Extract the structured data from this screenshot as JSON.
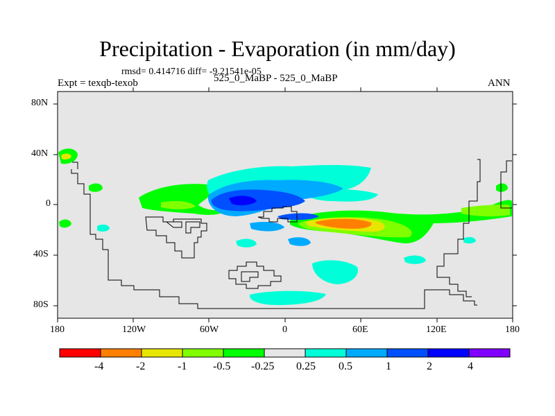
{
  "title": "Precipitation - Evaporation (in mm/day)",
  "stats": "rmsd= 0.414716 diff= -9.21541e-05",
  "left_label": "Expt = texqb-texob",
  "center_label": "525_0_MaBP - 525_0_MaBP",
  "right_label": "ANN",
  "map_data": {
    "type": "contour_map",
    "x_ticks": [
      "180",
      "120W",
      "60W",
      "0",
      "60E",
      "120E",
      "180"
    ],
    "y_ticks": [
      "80N",
      "40N",
      "0",
      "40S",
      "80S"
    ],
    "lon_range": [
      -180,
      180
    ],
    "lat_range": [
      -90,
      90
    ],
    "missing_color": "#e6e6e6",
    "colorbar": {
      "labels": [
        "-4",
        "-2",
        "-1",
        "-0.5",
        "-0.25",
        "0.25",
        "0.5",
        "1",
        "2",
        "4"
      ],
      "colors": [
        "#ff0000",
        "#ff8000",
        "#e6e600",
        "#80ff00",
        "#00ff00",
        "#e6e6e6",
        "#00ffd9",
        "#00aaff",
        "#0050ff",
        "#0000ff",
        "#8000ff"
      ]
    }
  }
}
